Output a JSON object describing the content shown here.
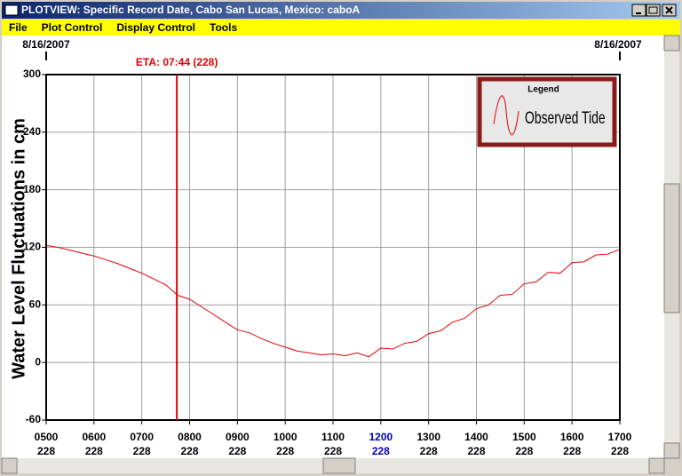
{
  "window": {
    "title": "PLOTVIEW: Specific Record Date, Cabo San Lucas, Mexico: caboA",
    "menu": [
      "File",
      "Plot Control",
      "Display Control",
      "Tools"
    ]
  },
  "chart_data": {
    "type": "line",
    "ylabel": "Water Level Fluctuations in cm",
    "date_left": "8/16/2007",
    "date_right": "8/16/2007",
    "x": [
      5,
      5.25,
      5.5,
      5.75,
      6,
      6.25,
      6.5,
      6.75,
      7,
      7.25,
      7.5,
      7.75,
      8,
      8.25,
      8.5,
      8.75,
      9,
      9.25,
      9.5,
      9.75,
      10,
      10.25,
      10.5,
      10.75,
      11,
      11.25,
      11.5,
      11.75,
      12,
      12.25,
      12.5,
      12.75,
      13,
      13.25,
      13.5,
      13.75,
      14,
      14.25,
      14.5,
      14.75,
      15,
      15.25,
      15.5,
      15.75,
      16,
      16.25,
      16.5,
      16.75,
      17
    ],
    "series": [
      {
        "name": "Observed Tide",
        "color": "#e00000",
        "values": [
          122,
          120,
          117,
          114,
          111,
          107,
          103,
          98,
          93,
          87,
          81,
          70,
          66,
          58,
          50,
          42,
          34,
          31,
          25,
          20,
          16,
          12,
          10,
          8,
          9,
          7,
          10,
          6,
          15,
          14,
          20,
          22,
          30,
          33,
          42,
          46,
          56,
          60,
          70,
          71,
          82,
          84,
          94,
          93,
          104,
          105,
          112,
          113,
          118
        ]
      }
    ],
    "legend_title": "Legend",
    "xlim": [
      5,
      17
    ],
    "ylim": [
      -60,
      300
    ],
    "xticks": [
      {
        "value": 5,
        "label": "0500"
      },
      {
        "value": 6,
        "label": "0600"
      },
      {
        "value": 7,
        "label": "0700"
      },
      {
        "value": 8,
        "label": "0800"
      },
      {
        "value": 9,
        "label": "0900"
      },
      {
        "value": 10,
        "label": "1000"
      },
      {
        "value": 11,
        "label": "1100"
      },
      {
        "value": 12,
        "label": "1200"
      },
      {
        "value": 13,
        "label": "1300"
      },
      {
        "value": 14,
        "label": "1400"
      },
      {
        "value": 15,
        "label": "1500"
      },
      {
        "value": 16,
        "label": "1600"
      },
      {
        "value": 17,
        "label": "1700"
      }
    ],
    "xtick_sublabels": [
      "228",
      "228",
      "228",
      "228",
      "228",
      "228",
      "228",
      "228",
      "228",
      "228",
      "228",
      "228",
      "228"
    ],
    "highlight_xtick": 12,
    "highlight_color": "#0000c0",
    "yticks": [
      -60,
      0,
      60,
      120,
      180,
      240,
      300
    ],
    "grid": true,
    "eta": {
      "x": 7.733,
      "label": "ETA: 07:44 (228)",
      "color": "#e00000"
    }
  }
}
